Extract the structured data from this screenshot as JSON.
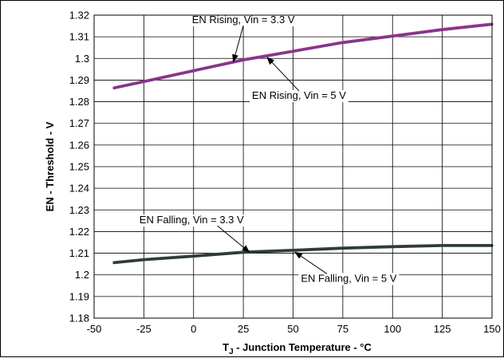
{
  "chart_data": {
    "type": "line",
    "title": "",
    "xlabel_main": "T",
    "xlabel_sub": "J",
    "xlabel_rest": " - Junction Temperature - °C",
    "ylabel": "EN - Threshold - V",
    "xlim": [
      -50,
      150
    ],
    "ylim": [
      1.18,
      1.32
    ],
    "xticks": [
      "-50",
      "-25",
      "0",
      "25",
      "50",
      "75",
      "100",
      "125",
      "150"
    ],
    "yticks": [
      "1.32",
      "1.31",
      "1.3",
      "1.29",
      "1.28",
      "1.27",
      "1.26",
      "1.25",
      "1.24",
      "1.23",
      "1.22",
      "1.21",
      "1.2",
      "1.19",
      "1.18"
    ],
    "grid": true,
    "series": [
      {
        "name": "EN Rising, Vin = 3.3 V",
        "color": "#c0308f",
        "x": [
          -40,
          -25,
          0,
          25,
          50,
          75,
          100,
          125,
          150
        ],
        "y": [
          1.2865,
          1.2895,
          1.2945,
          1.2995,
          1.3035,
          1.3075,
          1.3105,
          1.3135,
          1.316
        ]
      },
      {
        "name": "EN Rising, Vin = 5 V",
        "color": "#7a3a8a",
        "x": [
          -40,
          -25,
          0,
          25,
          50,
          75,
          100,
          125,
          150
        ],
        "y": [
          1.2862,
          1.2892,
          1.2942,
          1.2992,
          1.3032,
          1.3072,
          1.3102,
          1.3132,
          1.3157
        ]
      },
      {
        "name": "EN Falling, Vin = 3.3 V",
        "color": "#3f4a44",
        "x": [
          -40,
          -25,
          0,
          25,
          50,
          75,
          100,
          125,
          150
        ],
        "y": [
          1.2058,
          1.2072,
          1.2088,
          1.2106,
          1.2115,
          1.2125,
          1.2132,
          1.2137,
          1.2137
        ]
      },
      {
        "name": "EN Falling, Vin = 5 V",
        "color": "#2e3b35",
        "x": [
          -40,
          -25,
          0,
          25,
          50,
          75,
          100,
          125,
          150
        ],
        "y": [
          1.2055,
          1.2069,
          1.2085,
          1.2103,
          1.2112,
          1.2122,
          1.2129,
          1.2134,
          1.2134
        ]
      }
    ],
    "annotations": [
      {
        "text": "EN Rising, Vin = 3.3 V",
        "text_x": 25,
        "text_y": 1.3163,
        "arrow_to_x": 20,
        "arrow_to_y": 1.2985
      },
      {
        "text": "EN Rising, Vin = 5 V",
        "text_x": 53,
        "text_y": 1.2813,
        "arrow_to_x": 37,
        "arrow_to_y": 1.3005
      },
      {
        "text": "EN Falling, Vin = 3.3 V",
        "text_x": -1,
        "text_y": 1.2238,
        "arrow_to_x": 28,
        "arrow_to_y": 1.2105
      },
      {
        "text": "EN Falling, Vin = 5 V",
        "text_x": 78,
        "text_y": 1.1968,
        "arrow_to_x": 51,
        "arrow_to_y": 1.2105
      }
    ]
  }
}
